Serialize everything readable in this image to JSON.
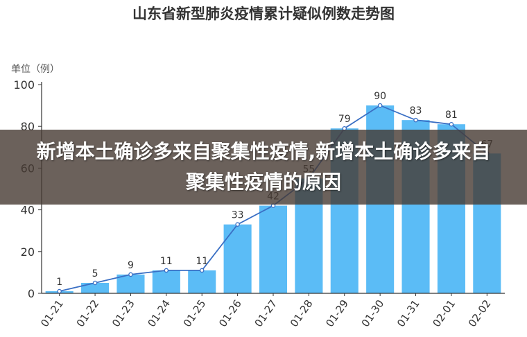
{
  "chart_data": {
    "type": "bar",
    "title": "山东省新型肺炎疫情累计疑似例数走势图",
    "ylabel": "单位（例）",
    "xlabel": "",
    "categories": [
      "01-21",
      "01-22",
      "01-23",
      "01-24",
      "01-25",
      "01-26",
      "01-27",
      "01-28",
      "01-29",
      "01-30",
      "01-31",
      "02-01",
      "02-02"
    ],
    "values": [
      1,
      5,
      9,
      11,
      11,
      33,
      42,
      55,
      79,
      90,
      83,
      81,
      67
    ],
    "line_overlay": true,
    "ylim": [
      0,
      100
    ],
    "yticks": [
      0,
      20,
      40,
      60,
      80,
      100
    ],
    "grid": false,
    "colors": {
      "bar": "#5bbcf6",
      "line": "#3a6fc4",
      "axis": "#333333"
    }
  },
  "banner": {
    "text": "新增本土确诊多来自聚集性疫情,新增本土确诊多来自聚集性疫情的原因"
  }
}
